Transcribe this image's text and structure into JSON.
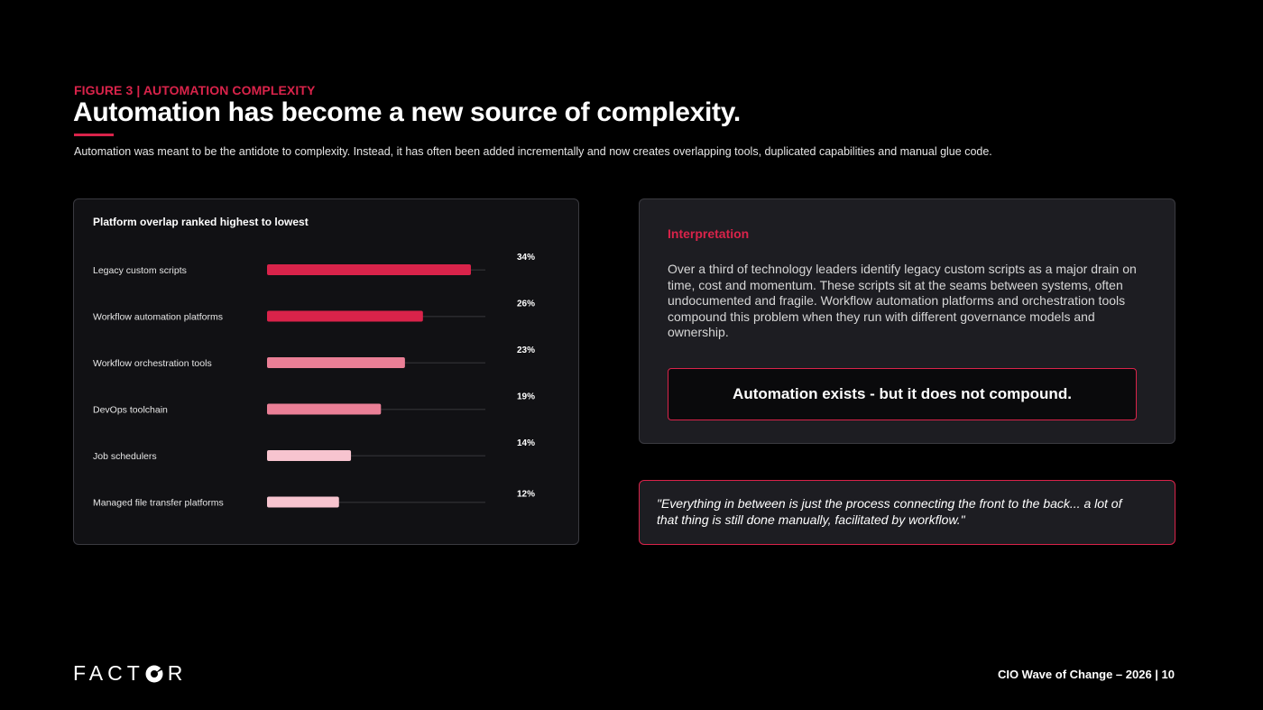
{
  "header": {
    "eyebrow": "FIGURE 3 | AUTOMATION COMPLEXITY",
    "title": "Automation has become a new source of complexity.",
    "subtitle": "Automation was meant to be the antidote to complexity. Instead, it has often been added incrementally and now creates overlapping tools, duplicated capabilities and manual glue code."
  },
  "chart_data": {
    "type": "bar",
    "orientation": "horizontal",
    "title": "Platform overlap ranked highest to lowest",
    "categories": [
      "Legacy custom scripts",
      "Workflow automation platforms",
      "Workflow orchestration tools",
      "DevOps toolchain",
      "Job schedulers",
      "Managed file transfer platforms"
    ],
    "values": [
      34,
      26,
      23,
      19,
      14,
      12
    ],
    "value_labels": [
      "34%",
      "26%",
      "23%",
      "19%",
      "14%",
      "12%"
    ],
    "unit": "%",
    "xlim": [
      0,
      36
    ],
    "grid": false,
    "bar_colors": [
      "#d9234a",
      "#d9234a",
      "#ea7f96",
      "#ea7f96",
      "#f7c4cf",
      "#f7c4cf"
    ],
    "track_color": "#2a2a2e"
  },
  "interpretation": {
    "heading": "Interpretation",
    "body": "Over a third of technology leaders identify legacy custom scripts as a major drain on time, cost and momentum. These scripts sit at the seams between systems, often undocumented and fragile. Workflow automation platforms and orchestration tools compound this problem when they run with different governance models and ownership.",
    "callout": "Automation exists - but it does not compound."
  },
  "quote": {
    "text": "\"Everything in between is just the process connecting the front to the back... a lot of that thing is still done manually, facilitated by workflow.\""
  },
  "footer": {
    "logo_text_left": "FACT",
    "logo_text_right": "R",
    "page_label": "CIO Wave of Change – 2026 | 10"
  },
  "colors": {
    "accent": "#d9234a",
    "background": "#000000"
  }
}
